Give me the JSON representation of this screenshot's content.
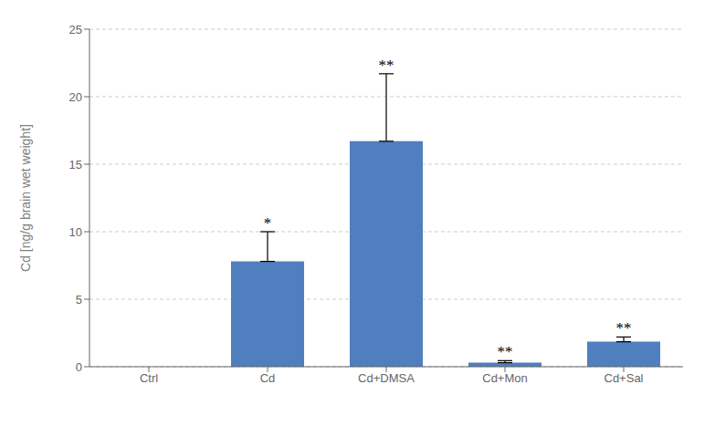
{
  "chart_data": {
    "type": "bar",
    "categories": [
      "Ctrl",
      "Cd",
      "Cd+DMSA",
      "Cd+Mon",
      "Cd+Sal"
    ],
    "values": [
      0.0,
      7.8,
      16.7,
      0.3,
      1.85
    ],
    "errors": [
      0.0,
      2.2,
      5.0,
      0.15,
      0.35
    ],
    "color": "#4f7fbe",
    "ylabel": "Cd [ng/g brain wet weight]",
    "ylim": [
      0,
      25
    ],
    "yticks": [
      0,
      5,
      10,
      15,
      20,
      25
    ],
    "grid": true,
    "annotations": [
      {
        "category": "Cd",
        "text": "*"
      },
      {
        "category": "Cd+DMSA",
        "text": "**"
      },
      {
        "category": "Cd+Mon",
        "text": "**"
      },
      {
        "category": "Cd+Sal",
        "text": "**"
      }
    ]
  }
}
